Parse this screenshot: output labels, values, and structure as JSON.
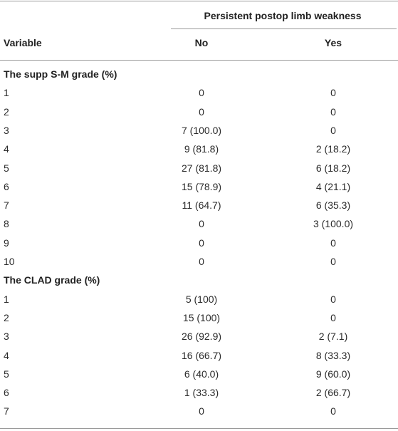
{
  "table": {
    "group_label": "Persistent postop limb weakness",
    "columns": [
      "Variable",
      "No",
      "Yes"
    ],
    "sections": [
      {
        "title": "The supp S-M grade (%)",
        "rows": [
          [
            "1",
            "0",
            "0"
          ],
          [
            "2",
            "0",
            "0"
          ],
          [
            "3",
            "7 (100.0)",
            "0"
          ],
          [
            "4",
            "9 (81.8)",
            "2 (18.2)"
          ],
          [
            "5",
            "27 (81.8)",
            "6 (18.2)"
          ],
          [
            "6",
            "15 (78.9)",
            "4 (21.1)"
          ],
          [
            "7",
            "11 (64.7)",
            "6 (35.3)"
          ],
          [
            "8",
            "0",
            "3 (100.0)"
          ],
          [
            "9",
            "0",
            "0"
          ],
          [
            "10",
            "0",
            "0"
          ]
        ]
      },
      {
        "title": "The CLAD grade (%)",
        "rows": [
          [
            "1",
            "5 (100)",
            "0"
          ],
          [
            "2",
            "15 (100)",
            "0"
          ],
          [
            "3",
            "26 (92.9)",
            "2 (7.1)"
          ],
          [
            "4",
            "16 (66.7)",
            "8 (33.3)"
          ],
          [
            "5",
            "6 (40.0)",
            "9 (60.0)"
          ],
          [
            "6",
            "1 (33.3)",
            "2 (66.7)"
          ],
          [
            "7",
            "0",
            "0"
          ]
        ]
      }
    ]
  }
}
